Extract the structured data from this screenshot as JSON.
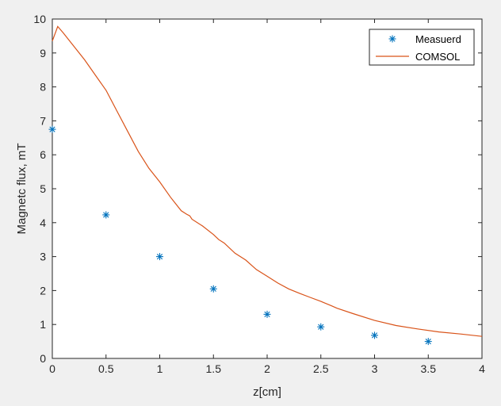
{
  "chart_data": {
    "type": "scatter",
    "title": "",
    "xlabel": "z[cm]",
    "ylabel": "Magnetc flux, mT",
    "xlim": [
      0,
      4
    ],
    "ylim": [
      0,
      10
    ],
    "x_ticks": [
      "0",
      "0.5",
      "1",
      "1.5",
      "2",
      "2.5",
      "3",
      "3.5",
      "4"
    ],
    "y_ticks": [
      "0",
      "1",
      "2",
      "3",
      "4",
      "5",
      "6",
      "7",
      "8",
      "9",
      "10"
    ],
    "grid": false,
    "legend_position": "top-right",
    "series": [
      {
        "name": "Measuerd",
        "type": "scatter",
        "marker": "asterisk",
        "color": "#0072BD",
        "x": [
          0,
          0.5,
          1,
          1.5,
          2,
          2.5,
          3,
          3.5
        ],
        "y": [
          6.75,
          4.23,
          3.0,
          2.05,
          1.3,
          0.93,
          0.68,
          0.5
        ]
      },
      {
        "name": "COMSOL",
        "type": "line",
        "color": "#D95319",
        "x": [
          0,
          0.05,
          0.1,
          0.2,
          0.3,
          0.4,
          0.5,
          0.6,
          0.7,
          0.8,
          0.9,
          1.0,
          1.1,
          1.2,
          1.25,
          1.28,
          1.3,
          1.4,
          1.5,
          1.55,
          1.6,
          1.7,
          1.8,
          1.9,
          2.0,
          2.1,
          2.2,
          2.3,
          2.4,
          2.5,
          2.6,
          2.65,
          2.8,
          3.0,
          3.2,
          3.4,
          3.6,
          3.8,
          4.0
        ],
        "y": [
          9.35,
          9.78,
          9.6,
          9.2,
          8.8,
          8.35,
          7.9,
          7.3,
          6.7,
          6.1,
          5.6,
          5.2,
          4.75,
          4.35,
          4.25,
          4.2,
          4.1,
          3.9,
          3.65,
          3.5,
          3.4,
          3.1,
          2.9,
          2.62,
          2.42,
          2.22,
          2.05,
          1.92,
          1.8,
          1.68,
          1.55,
          1.48,
          1.32,
          1.12,
          0.97,
          0.87,
          0.78,
          0.72,
          0.65
        ]
      }
    ],
    "colors": {
      "plot_background": "#ffffff",
      "figure_background": "#f0f0f0",
      "axis": "#262626"
    }
  }
}
